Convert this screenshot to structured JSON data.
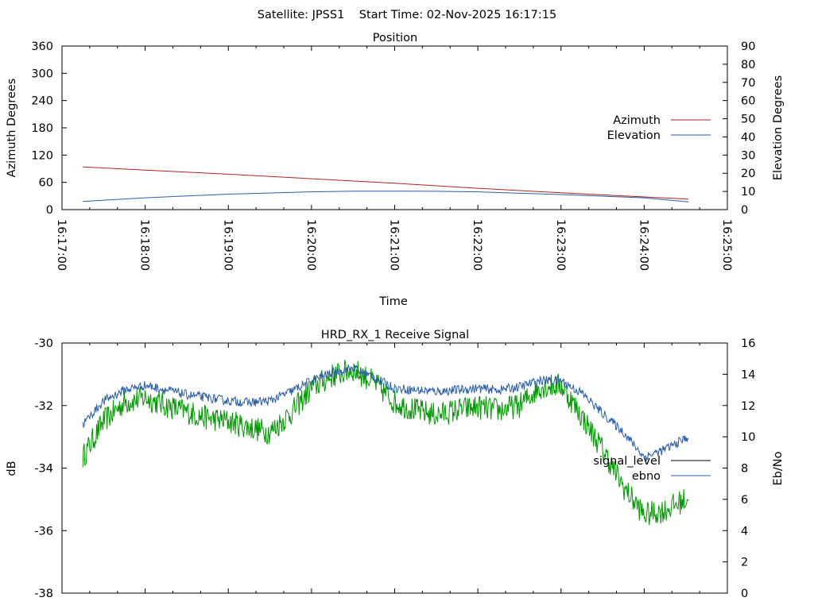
{
  "header": {
    "title": "Satellite: JPSS1    Start Time: 02-Nov-2025 16:17:15"
  },
  "colors": {
    "azimuth": "#b22222",
    "elevation": "#2a5ea8",
    "signal_level": "#000000",
    "ebno_line": "#2a5ea8",
    "green_series": "#009900"
  },
  "chart_data": [
    {
      "type": "line",
      "title": "Position",
      "xlabel": "Time",
      "ylabel": "Azimuth Degrees",
      "y2label": "Elevation Degrees",
      "xlim": [
        "16:17:00",
        "16:25:00"
      ],
      "ylim": [
        0,
        360
      ],
      "y2lim": [
        0,
        90
      ],
      "x_ticks": [
        "16:17:00",
        "16:18:00",
        "16:19:00",
        "16:20:00",
        "16:21:00",
        "16:22:00",
        "16:23:00",
        "16:24:00",
        "16:25:00"
      ],
      "y_ticks": [
        "0",
        "60",
        "120",
        "180",
        "240",
        "300",
        "360"
      ],
      "y2_ticks": [
        "0",
        "10",
        "20",
        "30",
        "40",
        "50",
        "60",
        "70",
        "80",
        "90"
      ],
      "grid": false,
      "legend_position": "right",
      "series": [
        {
          "name": "Azimuth",
          "axis": "y",
          "x": [
            "16:17:15",
            "16:18:00",
            "16:19:00",
            "16:20:00",
            "16:21:00",
            "16:22:00",
            "16:23:00",
            "16:24:00",
            "16:24:32"
          ],
          "values": [
            94,
            87,
            78,
            68,
            58,
            47,
            37,
            28,
            23
          ]
        },
        {
          "name": "Elevation",
          "axis": "y2",
          "x": [
            "16:17:15",
            "16:18:00",
            "16:19:00",
            "16:20:00",
            "16:20:30",
            "16:21:00",
            "16:21:30",
            "16:22:00",
            "16:23:00",
            "16:24:00",
            "16:24:32"
          ],
          "values": [
            4.5,
            6.5,
            8.5,
            9.8,
            10.2,
            10.2,
            10.1,
            9.8,
            8.3,
            6.5,
            4.3
          ]
        }
      ]
    },
    {
      "type": "line",
      "title": "HRD_RX_1 Receive Signal",
      "xlabel": "",
      "ylabel": "dB",
      "y2label": "Eb/No",
      "ylim": [
        -38,
        -30
      ],
      "y2lim": [
        0,
        16
      ],
      "y_ticks": [
        "-30",
        "-32",
        "-34",
        "-36",
        "-38"
      ],
      "y2_ticks": [
        "0",
        "2",
        "4",
        "6",
        "8",
        "10",
        "12",
        "14",
        "16"
      ],
      "x_minor_ticks_per_minute": 3,
      "grid": false,
      "legend_position": "right",
      "legend": [
        "signal_level",
        "ebno"
      ],
      "series": [
        {
          "name": "ebno",
          "axis": "y2",
          "x": [
            "16:17:15",
            "16:17:30",
            "16:17:45",
            "16:18:00",
            "16:18:15",
            "16:18:30",
            "16:18:45",
            "16:19:00",
            "16:19:15",
            "16:19:30",
            "16:19:45",
            "16:20:00",
            "16:20:15",
            "16:20:30",
            "16:20:45",
            "16:21:00",
            "16:21:15",
            "16:21:30",
            "16:21:45",
            "16:22:00",
            "16:22:15",
            "16:22:30",
            "16:22:45",
            "16:23:00",
            "16:23:15",
            "16:23:30",
            "16:23:45",
            "16:24:00",
            "16:24:15",
            "16:24:32"
          ],
          "values": [
            10.8,
            12.3,
            13.0,
            13.3,
            13.0,
            12.7,
            12.5,
            12.3,
            12.2,
            12.3,
            12.9,
            13.6,
            14.1,
            14.4,
            13.8,
            13.1,
            13.0,
            12.9,
            13.0,
            13.1,
            13.0,
            13.2,
            13.6,
            13.6,
            12.8,
            11.5,
            10.3,
            8.7,
            9.2,
            10.0
          ]
        },
        {
          "name": "",
          "axis": "y2",
          "x": [
            "16:17:15",
            "16:17:30",
            "16:17:45",
            "16:18:00",
            "16:18:15",
            "16:18:30",
            "16:18:45",
            "16:19:00",
            "16:19:15",
            "16:19:30",
            "16:19:45",
            "16:20:00",
            "16:20:15",
            "16:20:30",
            "16:20:45",
            "16:21:00",
            "16:21:15",
            "16:21:30",
            "16:21:45",
            "16:22:00",
            "16:22:15",
            "16:22:30",
            "16:22:45",
            "16:23:00",
            "16:23:15",
            "16:23:30",
            "16:23:45",
            "16:24:00",
            "16:24:15",
            "16:24:32"
          ],
          "values": [
            8.7,
            11.0,
            12.2,
            12.5,
            12.0,
            11.6,
            11.2,
            11.0,
            10.6,
            10.3,
            11.5,
            13.1,
            13.9,
            14.3,
            13.5,
            12.2,
            11.7,
            11.4,
            11.7,
            11.9,
            11.7,
            12.0,
            13.2,
            13.3,
            11.3,
            9.2,
            6.8,
            5.0,
            5.3,
            6.1
          ]
        },
        {
          "name": "signal_level",
          "axis": "y",
          "x": [],
          "values": []
        }
      ]
    }
  ]
}
